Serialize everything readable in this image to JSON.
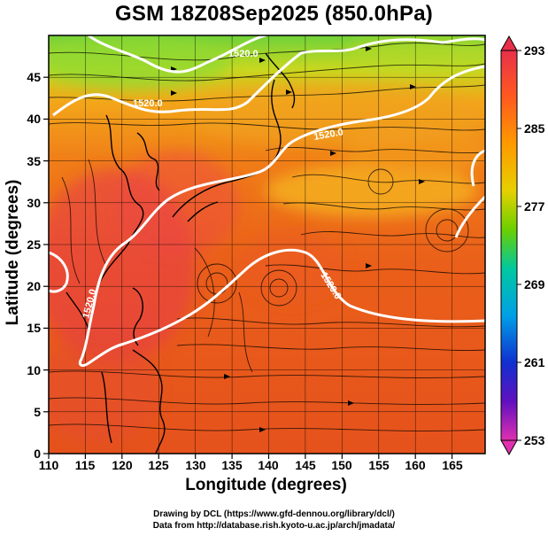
{
  "title": "GSM 18Z08Sep2025 (850.0hPa)",
  "x_axis": {
    "label": "Longitude (degrees)",
    "ticks": [
      "110",
      "115",
      "120",
      "125",
      "130",
      "135",
      "140",
      "145",
      "150",
      "155",
      "160",
      "165"
    ],
    "range": [
      110,
      169.5
    ]
  },
  "y_axis": {
    "label": "Latitude  (degrees)",
    "ticks": [
      "0",
      "5",
      "10",
      "15",
      "20",
      "25",
      "30",
      "35",
      "40",
      "45"
    ],
    "range": [
      0,
      50
    ]
  },
  "colorbar": {
    "ticks": [
      "293",
      "285",
      "277",
      "269",
      "261",
      "253"
    ],
    "range": [
      253,
      293
    ]
  },
  "contour_labels": [
    "1520.0",
    "1520.0",
    "1520.0",
    "1520.0",
    "1520.0"
  ],
  "footer": {
    "line1": "Drawing by DCL (https://www.gfd-dennou.org/library/dcl/)",
    "line2": "Data from http://database.rish.kyoto-u.ac.jp/arch/jmadata/"
  }
}
